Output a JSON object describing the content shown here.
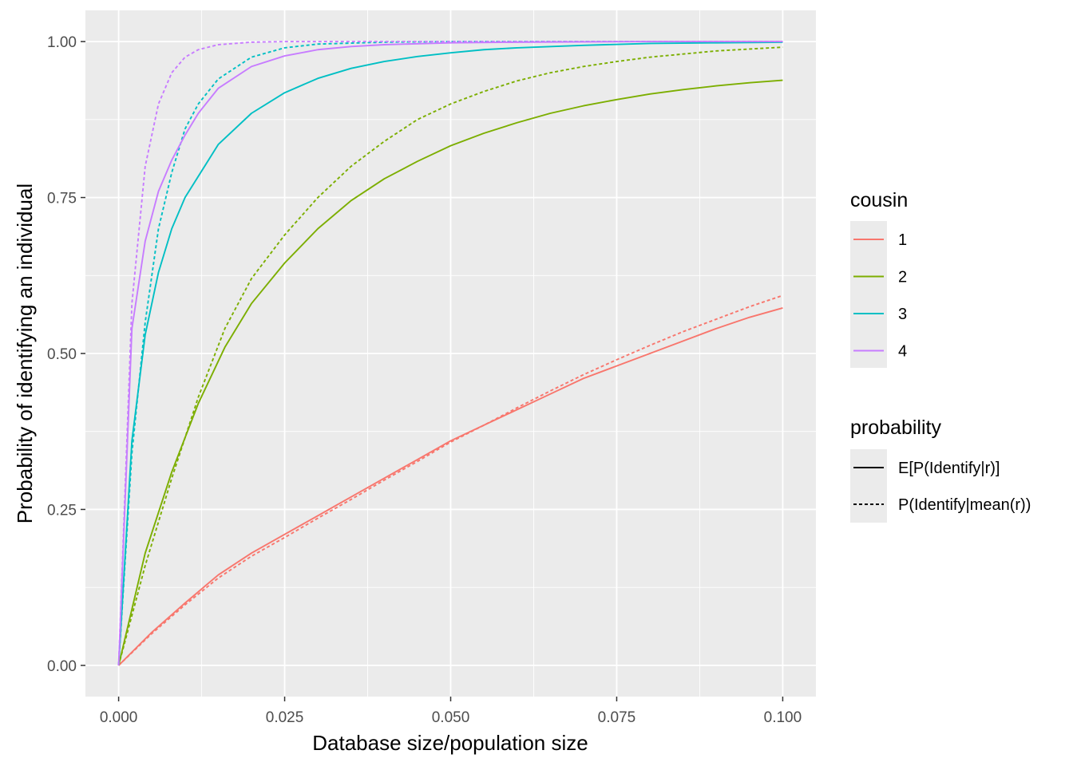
{
  "chart_data": {
    "type": "line",
    "title": "",
    "xlabel": "Database size/population size",
    "ylabel": "Probability of identifying an individual",
    "xlim": [
      -0.005,
      0.105
    ],
    "ylim": [
      -0.05,
      1.05
    ],
    "x_ticks": [
      0.0,
      0.025,
      0.05,
      0.075,
      0.1
    ],
    "x_tick_labels": [
      "0.000",
      "0.025",
      "0.050",
      "0.075",
      "0.100"
    ],
    "y_ticks": [
      0.0,
      0.25,
      0.5,
      0.75,
      1.0
    ],
    "y_tick_labels": [
      "0.00",
      "0.25",
      "0.50",
      "0.75",
      "1.00"
    ],
    "grid": true,
    "legend_placement": "right",
    "legends": [
      {
        "title": "cousin",
        "entries": [
          {
            "label": "1",
            "color": "#F8766D"
          },
          {
            "label": "2",
            "color": "#7CAE00"
          },
          {
            "label": "3",
            "color": "#00BFC4"
          },
          {
            "label": "4",
            "color": "#C77CFF"
          }
        ]
      },
      {
        "title": "probability",
        "entries": [
          {
            "label": "E[P(Identify|r)]",
            "linetype": "solid"
          },
          {
            "label": "P(Identify|mean(r))",
            "linetype": "dashed"
          }
        ]
      }
    ],
    "series": [
      {
        "cousin": "1",
        "probability": "E[P(Identify|r)]",
        "color": "#F8766D",
        "linetype": "solid",
        "x": [
          0,
          0.005,
          0.01,
          0.015,
          0.02,
          0.025,
          0.03,
          0.035,
          0.04,
          0.045,
          0.05,
          0.055,
          0.06,
          0.065,
          0.07,
          0.075,
          0.08,
          0.085,
          0.09,
          0.095,
          0.1
        ],
        "y": [
          0,
          0.053,
          0.1,
          0.145,
          0.18,
          0.21,
          0.24,
          0.27,
          0.3,
          0.33,
          0.36,
          0.385,
          0.41,
          0.435,
          0.46,
          0.48,
          0.5,
          0.52,
          0.54,
          0.558,
          0.573
        ]
      },
      {
        "cousin": "1",
        "probability": "P(Identify|mean(r))",
        "color": "#F8766D",
        "linetype": "dashed",
        "x": [
          0,
          0.005,
          0.01,
          0.015,
          0.02,
          0.025,
          0.03,
          0.035,
          0.04,
          0.045,
          0.05,
          0.055,
          0.06,
          0.065,
          0.07,
          0.075,
          0.08,
          0.085,
          0.09,
          0.095,
          0.1
        ],
        "y": [
          0,
          0.051,
          0.097,
          0.14,
          0.175,
          0.205,
          0.236,
          0.266,
          0.297,
          0.327,
          0.358,
          0.385,
          0.413,
          0.44,
          0.466,
          0.49,
          0.513,
          0.535,
          0.555,
          0.575,
          0.593
        ]
      },
      {
        "cousin": "2",
        "probability": "E[P(Identify|r)]",
        "color": "#7CAE00",
        "linetype": "solid",
        "x": [
          0,
          0.004,
          0.008,
          0.012,
          0.016,
          0.02,
          0.025,
          0.03,
          0.035,
          0.04,
          0.045,
          0.05,
          0.055,
          0.06,
          0.065,
          0.07,
          0.075,
          0.08,
          0.085,
          0.09,
          0.095,
          0.1
        ],
        "y": [
          0,
          0.18,
          0.31,
          0.42,
          0.51,
          0.58,
          0.645,
          0.7,
          0.745,
          0.78,
          0.808,
          0.833,
          0.853,
          0.87,
          0.885,
          0.897,
          0.907,
          0.916,
          0.923,
          0.929,
          0.934,
          0.938
        ]
      },
      {
        "cousin": "2",
        "probability": "P(Identify|mean(r))",
        "color": "#7CAE00",
        "linetype": "dashed",
        "x": [
          0,
          0.004,
          0.008,
          0.012,
          0.016,
          0.02,
          0.025,
          0.03,
          0.035,
          0.04,
          0.045,
          0.05,
          0.055,
          0.06,
          0.065,
          0.07,
          0.075,
          0.08,
          0.085,
          0.09,
          0.095,
          0.1
        ],
        "y": [
          0,
          0.16,
          0.3,
          0.43,
          0.54,
          0.62,
          0.69,
          0.75,
          0.8,
          0.84,
          0.875,
          0.9,
          0.92,
          0.937,
          0.95,
          0.96,
          0.968,
          0.975,
          0.98,
          0.985,
          0.988,
          0.991
        ]
      },
      {
        "cousin": "3",
        "probability": "E[P(Identify|r)]",
        "color": "#00BFC4",
        "linetype": "solid",
        "x": [
          0,
          0.002,
          0.004,
          0.006,
          0.008,
          0.01,
          0.015,
          0.02,
          0.025,
          0.03,
          0.035,
          0.04,
          0.045,
          0.05,
          0.055,
          0.06,
          0.07,
          0.08,
          0.09,
          0.1
        ],
        "y": [
          0,
          0.36,
          0.53,
          0.63,
          0.7,
          0.75,
          0.835,
          0.885,
          0.918,
          0.941,
          0.957,
          0.968,
          0.976,
          0.982,
          0.987,
          0.99,
          0.994,
          0.997,
          0.998,
          0.999
        ]
      },
      {
        "cousin": "3",
        "probability": "P(Identify|mean(r))",
        "color": "#00BFC4",
        "linetype": "dashed",
        "x": [
          0,
          0.002,
          0.004,
          0.006,
          0.008,
          0.01,
          0.012,
          0.015,
          0.02,
          0.025,
          0.03,
          0.04,
          0.05,
          0.06,
          0.08,
          0.1
        ],
        "y": [
          0,
          0.34,
          0.55,
          0.7,
          0.79,
          0.86,
          0.9,
          0.94,
          0.975,
          0.99,
          0.996,
          0.999,
          1.0,
          1.0,
          1.0,
          1.0
        ]
      },
      {
        "cousin": "4",
        "probability": "E[P(Identify|r)]",
        "color": "#C77CFF",
        "linetype": "solid",
        "x": [
          0,
          0.002,
          0.004,
          0.006,
          0.008,
          0.01,
          0.012,
          0.015,
          0.02,
          0.025,
          0.03,
          0.035,
          0.04,
          0.05,
          0.06,
          0.08,
          0.1
        ],
        "y": [
          0,
          0.54,
          0.68,
          0.76,
          0.81,
          0.85,
          0.885,
          0.925,
          0.96,
          0.977,
          0.987,
          0.992,
          0.995,
          0.998,
          0.999,
          1.0,
          1.0
        ]
      },
      {
        "cousin": "4",
        "probability": "P(Identify|mean(r))",
        "color": "#C77CFF",
        "linetype": "dashed",
        "x": [
          0,
          0.002,
          0.004,
          0.006,
          0.008,
          0.01,
          0.012,
          0.015,
          0.02,
          0.025,
          0.03,
          0.04,
          0.06,
          0.08,
          0.1
        ],
        "y": [
          0,
          0.58,
          0.8,
          0.9,
          0.95,
          0.975,
          0.987,
          0.995,
          0.999,
          1.0,
          1.0,
          1.0,
          1.0,
          1.0,
          1.0
        ]
      }
    ]
  }
}
